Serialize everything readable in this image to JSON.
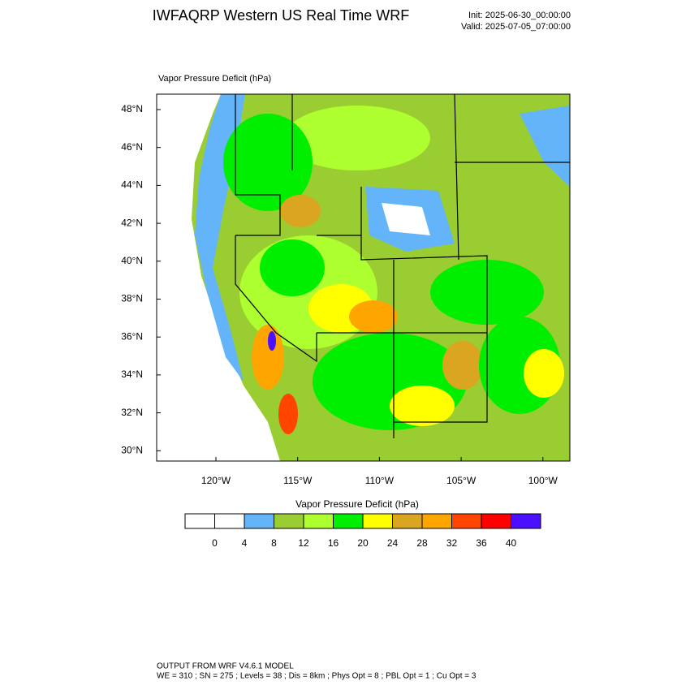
{
  "header": {
    "title": "IWFAQRP Western US Real Time WRF",
    "init": "Init: 2025-06-30_00:00:00",
    "valid": "Valid: 2025-07-05_07:00:00"
  },
  "map": {
    "field_label": "Vapor Pressure Deficit   (hPa)",
    "lat_ticks": [
      "48°N",
      "46°N",
      "44°N",
      "42°N",
      "40°N",
      "38°N",
      "36°N",
      "34°N",
      "32°N",
      "30°N"
    ],
    "lon_ticks": [
      "120°W",
      "115°W",
      "110°W",
      "105°W",
      "100°W"
    ]
  },
  "colorbar": {
    "title": "Vapor Pressure Deficit  (hPa)",
    "colors": [
      "#ffffff",
      "#ffffff",
      "#63b4f8",
      "#9acd32",
      "#adff2f",
      "#00ee00",
      "#ffff00",
      "#daa520",
      "#ffa500",
      "#ff4500",
      "#ff0000",
      "#4b10ff"
    ],
    "labels": [
      "0",
      "4",
      "8",
      "12",
      "16",
      "20",
      "24",
      "28",
      "32",
      "36",
      "40"
    ]
  },
  "footer": {
    "line1": "OUTPUT FROM WRF V4.6.1 MODEL",
    "line2": "WE = 310 ; SN = 275 ; Levels = 38 ; Dis = 8km ; Phys Opt = 8 ; PBL Opt = 1 ; Cu Opt = 3"
  }
}
